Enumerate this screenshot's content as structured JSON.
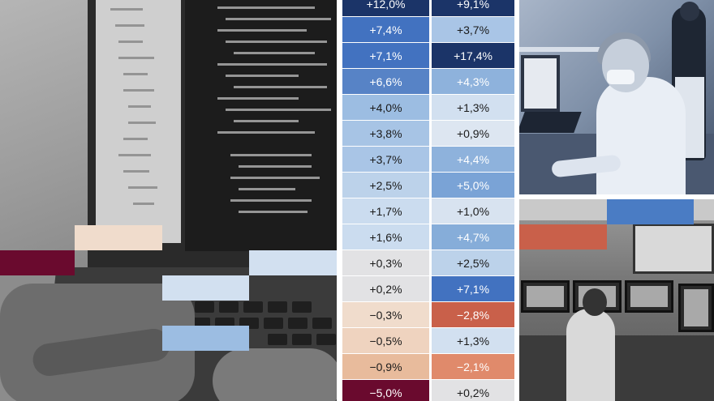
{
  "colors": {
    "dark_blue": "#1b3468",
    "mid_blue": "#4272c0",
    "blue": "#5e8bca",
    "soft_blue": "#8eb2dc",
    "light_blue": "#b3cde8",
    "pale_blue": "#d2e0f0",
    "grey": "#e2e2e4",
    "pale_peach": "#f0dccc",
    "peach": "#e8bb9c",
    "orange_red": "#c9604a",
    "salmon": "#e08a6b",
    "burgundy": "#6a0a2e"
  },
  "images": {
    "left_photo": "laptop-code-photo",
    "top_right_photo": "lab-worker-photo",
    "bottom_right_photo": "control-room-photo"
  },
  "table": {
    "rows": [
      {
        "a": "+12,0%",
        "a_color": "#1b3468",
        "a_text": "#ffffff",
        "b": "+9,1%",
        "b_color": "#1b3468",
        "b_text": "#ffffff"
      },
      {
        "a": "+7,4%",
        "a_color": "#4272c0",
        "a_text": "#ffffff",
        "b": "+3,7%",
        "b_color": "#a9c5e6",
        "b_text": "#1a1a1a"
      },
      {
        "a": "+7,1%",
        "a_color": "#4272c0",
        "a_text": "#ffffff",
        "b": "+17,4%",
        "b_color": "#1b3468",
        "b_text": "#ffffff"
      },
      {
        "a": "+6,6%",
        "a_color": "#5783c6",
        "a_text": "#ffffff",
        "b": "+4,3%",
        "b_color": "#8eb2dc",
        "b_text": "#ffffff"
      },
      {
        "a": "+4,0%",
        "a_color": "#9cbde2",
        "a_text": "#1a1a1a",
        "b": "+1,3%",
        "b_color": "#d2e0f0",
        "b_text": "#1a1a1a"
      },
      {
        "a": "+3,8%",
        "a_color": "#a7c4e5",
        "a_text": "#1a1a1a",
        "b": "+0,9%",
        "b_color": "#dde6f1",
        "b_text": "#1a1a1a"
      },
      {
        "a": "+3,7%",
        "a_color": "#a9c5e6",
        "a_text": "#1a1a1a",
        "b": "+4,4%",
        "b_color": "#8eb2dc",
        "b_text": "#ffffff"
      },
      {
        "a": "+2,5%",
        "a_color": "#bcd2ea",
        "a_text": "#1a1a1a",
        "b": "+5,0%",
        "b_color": "#7aa3d6",
        "b_text": "#ffffff"
      },
      {
        "a": "+1,7%",
        "a_color": "#cbdcef",
        "a_text": "#1a1a1a",
        "b": "+1,0%",
        "b_color": "#d8e3f0",
        "b_text": "#1a1a1a"
      },
      {
        "a": "+1,6%",
        "a_color": "#cbdcef",
        "a_text": "#1a1a1a",
        "b": "+4,7%",
        "b_color": "#86add9",
        "b_text": "#ffffff"
      },
      {
        "a": "+0,3%",
        "a_color": "#e2e2e4",
        "a_text": "#1a1a1a",
        "b": "+2,5%",
        "b_color": "#bcd2ea",
        "b_text": "#1a1a1a"
      },
      {
        "a": "+0,2%",
        "a_color": "#e2e2e4",
        "a_text": "#1a1a1a",
        "b": "+7,1%",
        "b_color": "#4272c0",
        "b_text": "#ffffff"
      },
      {
        "a": "−0,3%",
        "a_color": "#f0dccc",
        "a_text": "#1a1a1a",
        "b": "−2,8%",
        "b_color": "#c9604a",
        "b_text": "#ffffff"
      },
      {
        "a": "−0,5%",
        "a_color": "#efd3bf",
        "a_text": "#1a1a1a",
        "b": "+1,3%",
        "b_color": "#d2e0f0",
        "b_text": "#1a1a1a"
      },
      {
        "a": "−0,9%",
        "a_color": "#e8bb9c",
        "a_text": "#1a1a1a",
        "b": "−2,1%",
        "b_color": "#e08a6b",
        "b_text": "#ffffff"
      },
      {
        "a": "−5,0%",
        "a_color": "#6a0a2e",
        "a_text": "#ffffff",
        "b": "+0,2%",
        "b_color": "#e2e2e4",
        "b_text": "#1a1a1a"
      }
    ]
  },
  "deco_bars": [
    {
      "color": "#f0dccc"
    },
    {
      "color": "#6a0a2e"
    },
    {
      "color": "#d2e0f0"
    },
    {
      "color": "#d2e0f0"
    },
    {
      "color": "#9cbde2"
    },
    {
      "color": "#4a7cc4"
    },
    {
      "color": "#c9604a"
    }
  ]
}
